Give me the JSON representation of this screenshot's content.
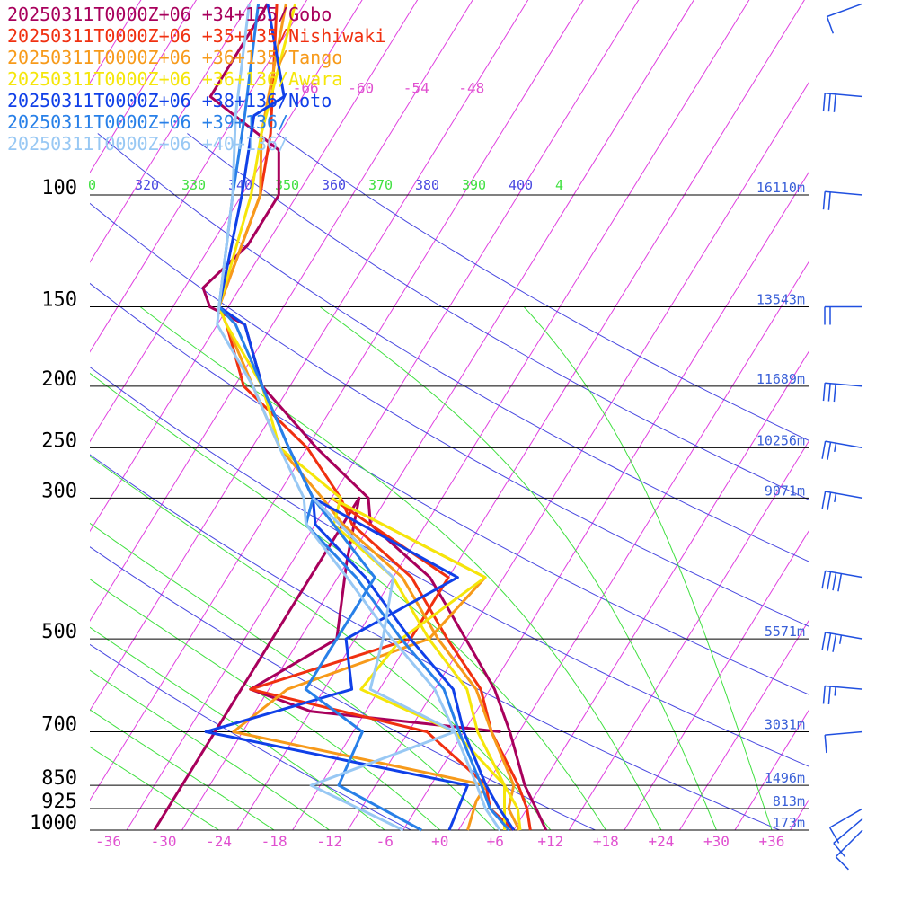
{
  "colors": {
    "isotherm": "#e040e0",
    "dry_adiabat": "#4848e0",
    "moist_adiabat": "#40e040",
    "isobar": "#000000",
    "height_label": "#3a60d8",
    "temp_tick": "#e050d0",
    "barb": "#2050e0"
  },
  "chart_data": {
    "type": "line",
    "title": "",
    "xlabel": "",
    "ylabel": "",
    "pressure_levels": [
      100,
      150,
      200,
      250,
      300,
      500,
      700,
      850,
      925,
      1000
    ],
    "pressure_labels": [
      "100",
      "150",
      "200",
      "250",
      "300",
      "500",
      "700",
      "850",
      "925",
      "1000"
    ],
    "height_labels": [
      "16110m",
      "13543m",
      "11689m",
      "10256m",
      "9071m",
      "5571m",
      "3031m",
      "1496m",
      "813m",
      "173m"
    ],
    "temperature_ticks": [
      "-36",
      "-30",
      "-24",
      "-18",
      "-12",
      "-6",
      "+0",
      "+6",
      "+12",
      "+18",
      "+24",
      "+30",
      "+36"
    ],
    "upper_isotherm_labels": [
      "-66",
      "-60",
      "-54",
      "-48"
    ],
    "theta_labels": [
      {
        "text": "0",
        "color": "#40e040"
      },
      {
        "text": "320",
        "color": "#4848e0"
      },
      {
        "text": "330",
        "color": "#40e040"
      },
      {
        "text": "340",
        "color": "#4848e0"
      },
      {
        "text": "350",
        "color": "#40e040"
      },
      {
        "text": "360",
        "color": "#4848e0"
      },
      {
        "text": "370",
        "color": "#40e040"
      },
      {
        "text": "380",
        "color": "#4848e0"
      },
      {
        "text": "390",
        "color": "#40e040"
      },
      {
        "text": "400",
        "color": "#4848e0"
      },
      {
        "text": "4",
        "color": "#40e040"
      }
    ],
    "axis_range": {
      "temperature_c": [
        -38,
        40
      ],
      "pressure_hpa": [
        1000,
        100
      ],
      "skew_deg_per_decade": 42.5
    },
    "log_pressure_axis": true,
    "legend_position": "top-left",
    "series": [
      {
        "name": "20250311T0000Z+06 +34+135/Gobo",
        "color": "#a8005c",
        "temperature": [
          [
            1000,
            11.5
          ],
          [
            925,
            9
          ],
          [
            850,
            6.2
          ],
          [
            700,
            1
          ],
          [
            600,
            -3.5
          ],
          [
            500,
            -10
          ],
          [
            400,
            -18
          ],
          [
            330,
            -28
          ],
          [
            300,
            -30
          ],
          [
            250,
            -39
          ],
          [
            200,
            -49
          ],
          [
            160,
            -55
          ],
          [
            150,
            -60
          ],
          [
            140,
            -62
          ],
          [
            120,
            -60
          ],
          [
            100,
            -60
          ],
          [
            85,
            -63
          ],
          [
            70,
            -74
          ],
          [
            50,
            -74
          ]
        ],
        "dewpoint": [
          [
            1000,
            -31
          ],
          [
            300,
            -31
          ],
          [
            380,
            -28
          ],
          [
            500,
            -24
          ],
          [
            600,
            -30
          ],
          [
            650,
            -22
          ],
          [
            700,
            0
          ]
        ]
      },
      {
        "name": "20250311T0000Z+06 +35+135/Nishiwaki",
        "color": "#f03010",
        "temperature": [
          [
            1000,
            9.8
          ],
          [
            925,
            8
          ],
          [
            850,
            5.5
          ],
          [
            700,
            -1
          ],
          [
            600,
            -5
          ],
          [
            500,
            -12
          ],
          [
            400,
            -20
          ],
          [
            330,
            -30
          ],
          [
            300,
            -33
          ],
          [
            250,
            -40
          ],
          [
            200,
            -51
          ],
          [
            160,
            -57
          ],
          [
            150,
            -59
          ],
          [
            100,
            -62
          ],
          [
            80,
            -65
          ],
          [
            50,
            -73
          ]
        ],
        "dewpoint": [
          [
            1000,
            8
          ],
          [
            925,
            4
          ],
          [
            850,
            2
          ],
          [
            700,
            -8
          ],
          [
            600,
            -30
          ],
          [
            500,
            -16
          ],
          [
            400,
            -16
          ],
          [
            300,
            -34
          ]
        ]
      },
      {
        "name": "20250311T0000Z+06 +36+135/Tango",
        "color": "#f79a1a",
        "temperature": [
          [
            1000,
            8.6
          ],
          [
            925,
            6
          ],
          [
            850,
            5
          ],
          [
            700,
            -1
          ],
          [
            600,
            -5.5
          ],
          [
            500,
            -13
          ],
          [
            400,
            -21
          ],
          [
            330,
            -31
          ],
          [
            300,
            -35
          ],
          [
            250,
            -43
          ],
          [
            200,
            -50
          ],
          [
            160,
            -57
          ],
          [
            150,
            -59
          ],
          [
            100,
            -62
          ],
          [
            80,
            -66
          ],
          [
            50,
            -72
          ]
        ],
        "dewpoint": [
          [
            1000,
            3
          ],
          [
            900,
            2
          ],
          [
            850,
            2
          ],
          [
            700,
            -29
          ],
          [
            600,
            -26
          ],
          [
            500,
            -14
          ],
          [
            400,
            -12
          ],
          [
            300,
            -34
          ]
        ]
      },
      {
        "name": "20250311T0000Z+06 +36+136/Awara",
        "color": "#f5e60a",
        "temperature": [
          [
            1000,
            8.7
          ],
          [
            925,
            7
          ],
          [
            850,
            4
          ],
          [
            700,
            -2.5
          ],
          [
            600,
            -6.5
          ],
          [
            500,
            -14
          ],
          [
            400,
            -22
          ],
          [
            330,
            -32
          ],
          [
            300,
            -33
          ],
          [
            250,
            -43
          ],
          [
            200,
            -49
          ],
          [
            160,
            -57
          ],
          [
            150,
            -59
          ],
          [
            100,
            -63
          ],
          [
            80,
            -66
          ],
          [
            50,
            -71
          ]
        ],
        "dewpoint": [
          [
            1000,
            7
          ],
          [
            850,
            4
          ],
          [
            700,
            -5
          ],
          [
            600,
            -18
          ],
          [
            500,
            -17
          ],
          [
            400,
            -12
          ],
          [
            300,
            -34
          ]
        ]
      },
      {
        "name": "20250311T0000Z+06 +38+136/Noto",
        "color": "#1040e8",
        "temperature": [
          [
            1000,
            8
          ],
          [
            925,
            5
          ],
          [
            850,
            2
          ],
          [
            700,
            -4
          ],
          [
            600,
            -8
          ],
          [
            500,
            -16
          ],
          [
            400,
            -25
          ],
          [
            330,
            -34
          ],
          [
            300,
            -36
          ],
          [
            250,
            -42
          ],
          [
            200,
            -49
          ],
          [
            160,
            -55
          ],
          [
            150,
            -59
          ],
          [
            100,
            -64
          ],
          [
            75,
            -68
          ],
          [
            70,
            -66
          ],
          [
            50,
            -74
          ]
        ],
        "dewpoint": [
          [
            1000,
            1
          ],
          [
            850,
            0
          ],
          [
            700,
            -32
          ],
          [
            600,
            -19
          ],
          [
            500,
            -23
          ],
          [
            400,
            -15
          ],
          [
            300,
            -36
          ]
        ]
      },
      {
        "name": "20250311T0000Z+06 +39+136/",
        "color": "#2880e8",
        "temperature": [
          [
            1000,
            7.5
          ],
          [
            925,
            4
          ],
          [
            850,
            1.5
          ],
          [
            700,
            -4.5
          ],
          [
            600,
            -9
          ],
          [
            500,
            -17
          ],
          [
            400,
            -26
          ],
          [
            330,
            -35
          ],
          [
            300,
            -36
          ],
          [
            250,
            -42
          ],
          [
            200,
            -49
          ],
          [
            160,
            -56
          ],
          [
            150,
            -59
          ],
          [
            100,
            -65
          ],
          [
            75,
            -69
          ],
          [
            50,
            -75
          ]
        ],
        "dewpoint": [
          [
            1000,
            -2
          ],
          [
            850,
            -14
          ],
          [
            700,
            -15
          ],
          [
            600,
            -24
          ],
          [
            500,
            -24
          ],
          [
            400,
            -24
          ],
          [
            300,
            -36
          ]
        ]
      },
      {
        "name": "20250311T0000Z+06 +40+136/",
        "color": "#98c8f4",
        "temperature": [
          [
            1000,
            6.5
          ],
          [
            925,
            3.5
          ],
          [
            850,
            1
          ],
          [
            700,
            -5
          ],
          [
            600,
            -10
          ],
          [
            500,
            -18
          ],
          [
            400,
            -27
          ],
          [
            330,
            -35
          ],
          [
            300,
            -37
          ],
          [
            250,
            -43
          ],
          [
            200,
            -50
          ],
          [
            160,
            -58
          ],
          [
            150,
            -59
          ],
          [
            100,
            -65
          ],
          [
            75,
            -70
          ],
          [
            50,
            -76
          ]
        ],
        "dewpoint": [
          [
            1000,
            -4
          ],
          [
            850,
            -17
          ],
          [
            700,
            -5
          ],
          [
            600,
            -17
          ],
          [
            500,
            -19
          ],
          [
            400,
            -22
          ],
          [
            300,
            -36
          ]
        ]
      }
    ],
    "wind_barbs": [
      {
        "pressure": 1000,
        "dir": 225,
        "speed": 10
      },
      {
        "pressure": 960,
        "dir": 230,
        "speed": 10
      },
      {
        "pressure": 925,
        "dir": 240,
        "speed": 10
      },
      {
        "pressure": 700,
        "dir": 265,
        "speed": 10
      },
      {
        "pressure": 600,
        "dir": 275,
        "speed": 25
      },
      {
        "pressure": 500,
        "dir": 280,
        "speed": 35
      },
      {
        "pressure": 400,
        "dir": 280,
        "speed": 40
      },
      {
        "pressure": 300,
        "dir": 280,
        "speed": 25
      },
      {
        "pressure": 250,
        "dir": 280,
        "speed": 25
      },
      {
        "pressure": 200,
        "dir": 275,
        "speed": 30
      },
      {
        "pressure": 150,
        "dir": 270,
        "speed": 20
      },
      {
        "pressure": 100,
        "dir": 275,
        "speed": 20
      },
      {
        "pressure": 70,
        "dir": 275,
        "speed": 30
      },
      {
        "pressure": 50,
        "dir": 250,
        "speed": 10
      }
    ]
  }
}
